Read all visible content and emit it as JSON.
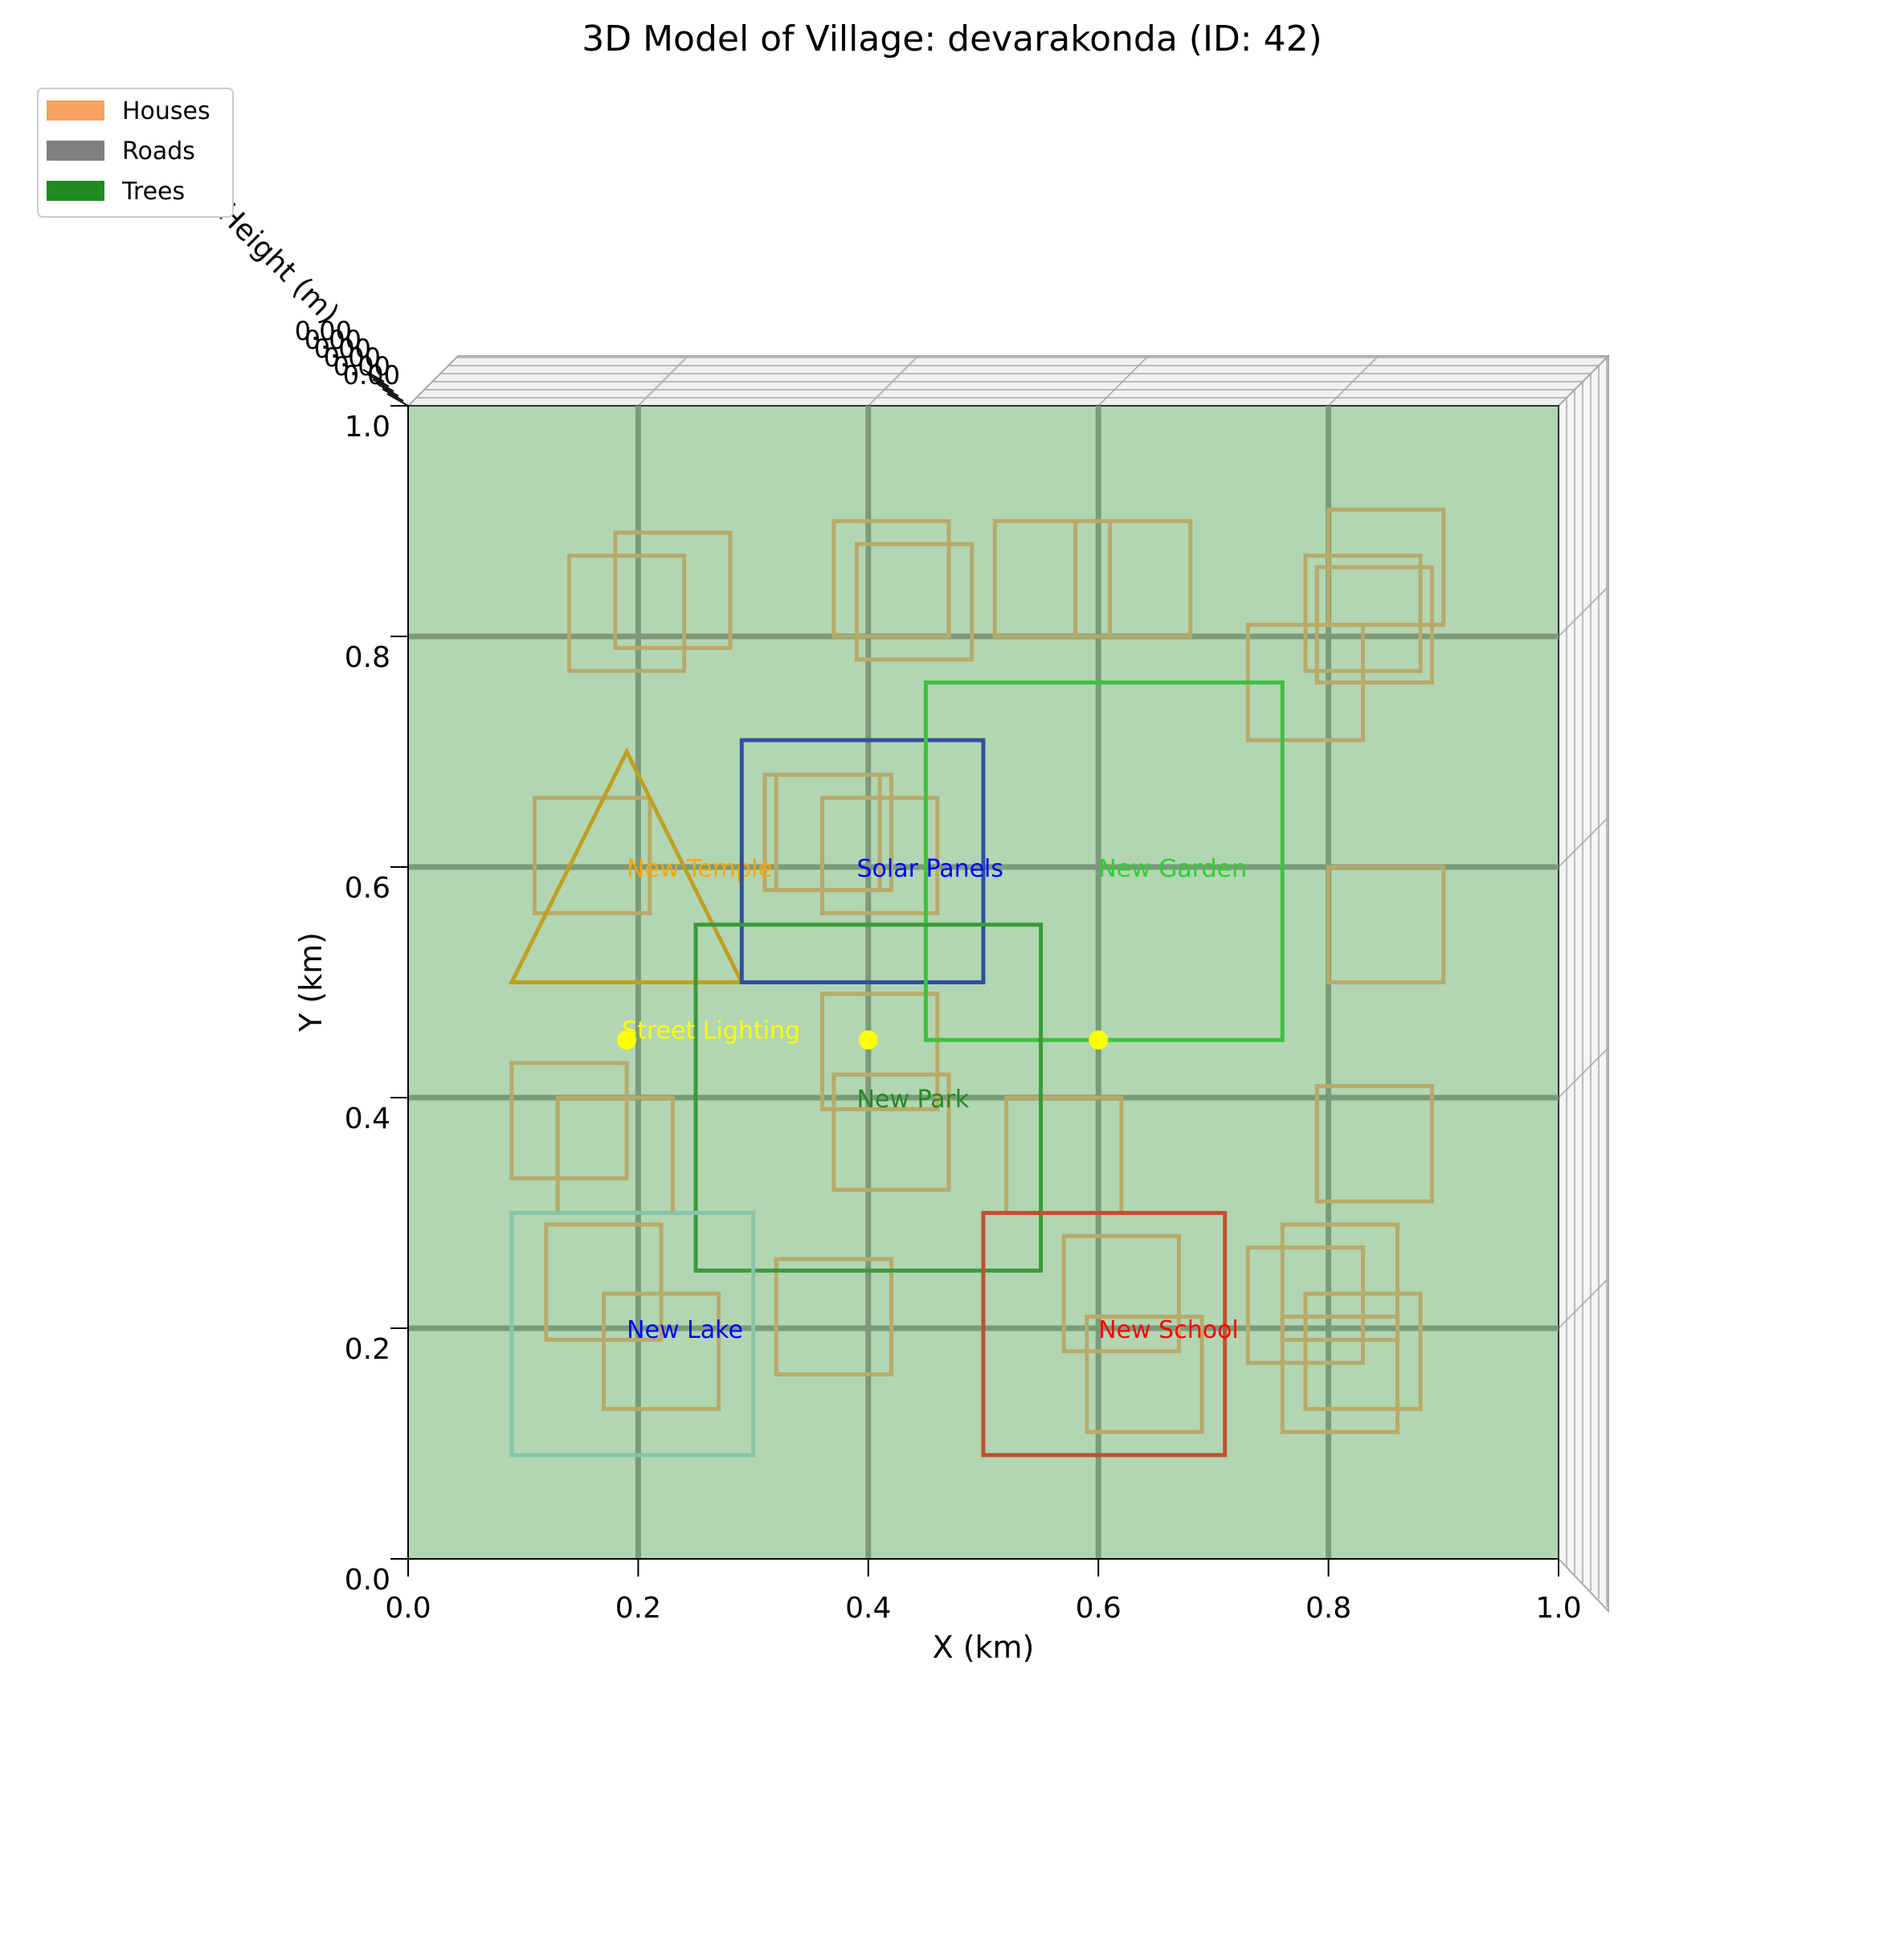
{
  "chart_data": {
    "type": "3d-map",
    "title": "3D Model of Village: devarakonda (ID: 42)",
    "xlabel": "X (km)",
    "ylabel": "Y (km)",
    "zlabel": "Height (m)",
    "xlim": [
      0,
      1
    ],
    "ylim": [
      0,
      1
    ],
    "x_ticks": [
      "0.0",
      "0.2",
      "0.4",
      "0.6",
      "0.8",
      "1.0"
    ],
    "y_ticks": [
      "0.0",
      "0.2",
      "0.4",
      "0.6",
      "0.8",
      "1.0"
    ],
    "z_tick_labels_shown": "0.00",
    "grid": true,
    "legend_position": "top-left",
    "legend": [
      {
        "label": "Houses",
        "color": "#f4a460"
      },
      {
        "label": "Roads",
        "color": "#808080"
      },
      {
        "label": "Trees",
        "color": "#228b22"
      }
    ],
    "ground_color": "#b2d6b2",
    "roads": {
      "color": "#7a9a7a",
      "x_positions": [
        0.2,
        0.4,
        0.6,
        0.8
      ],
      "y_positions": [
        0.2,
        0.4,
        0.6,
        0.8
      ]
    },
    "houses": {
      "color": "#b8aa6a",
      "footprints": [
        [
          0.14,
          0.77,
          0.1,
          0.1
        ],
        [
          0.18,
          0.79,
          0.1,
          0.1
        ],
        [
          0.37,
          0.8,
          0.1,
          0.1
        ],
        [
          0.39,
          0.78,
          0.1,
          0.1
        ],
        [
          0.51,
          0.8,
          0.1,
          0.1
        ],
        [
          0.58,
          0.8,
          0.1,
          0.1
        ],
        [
          0.78,
          0.77,
          0.1,
          0.1
        ],
        [
          0.79,
          0.76,
          0.1,
          0.1
        ],
        [
          0.73,
          0.71,
          0.1,
          0.1
        ],
        [
          0.8,
          0.81,
          0.1,
          0.1
        ],
        [
          0.11,
          0.56,
          0.1,
          0.1
        ],
        [
          0.31,
          0.58,
          0.1,
          0.1
        ],
        [
          0.32,
          0.58,
          0.1,
          0.1
        ],
        [
          0.36,
          0.56,
          0.1,
          0.1
        ],
        [
          0.8,
          0.5,
          0.1,
          0.1
        ],
        [
          0.36,
          0.39,
          0.1,
          0.1
        ],
        [
          0.09,
          0.33,
          0.1,
          0.1
        ],
        [
          0.13,
          0.3,
          0.1,
          0.1
        ],
        [
          0.37,
          0.32,
          0.1,
          0.1
        ],
        [
          0.52,
          0.3,
          0.1,
          0.1
        ],
        [
          0.79,
          0.31,
          0.1,
          0.1
        ],
        [
          0.12,
          0.19,
          0.1,
          0.1
        ],
        [
          0.17,
          0.13,
          0.1,
          0.1
        ],
        [
          0.32,
          0.16,
          0.1,
          0.1
        ],
        [
          0.57,
          0.18,
          0.1,
          0.1
        ],
        [
          0.59,
          0.11,
          0.1,
          0.1
        ],
        [
          0.73,
          0.17,
          0.1,
          0.1
        ],
        [
          0.76,
          0.19,
          0.1,
          0.1
        ],
        [
          0.76,
          0.11,
          0.1,
          0.1
        ],
        [
          0.78,
          0.13,
          0.1,
          0.1
        ]
      ]
    },
    "features": [
      {
        "label": "New Temple",
        "shape": "triangle",
        "points": [
          [
            0.09,
            0.5
          ],
          [
            0.29,
            0.5
          ],
          [
            0.19,
            0.7
          ]
        ],
        "color": "#c0a020",
        "label_color": "#ffa500",
        "label_pos": [
          0.19,
          0.6
        ]
      },
      {
        "label": "Solar Panels",
        "shape": "rect",
        "rect": [
          0.29,
          0.5,
          0.21,
          0.21
        ],
        "color": "#3050a0",
        "label_color": "#0000ff",
        "label_pos": [
          0.39,
          0.6
        ]
      },
      {
        "label": "New Garden",
        "shape": "rect",
        "rect": [
          0.45,
          0.45,
          0.31,
          0.31
        ],
        "color": "#40c040",
        "label_color": "#32cd32",
        "label_pos": [
          0.6,
          0.6
        ]
      },
      {
        "label": "New Park",
        "shape": "rect",
        "rect": [
          0.25,
          0.25,
          0.3,
          0.3
        ],
        "color": "#3a9a3a",
        "label_color": "#228b22",
        "label_pos": [
          0.39,
          0.4
        ]
      },
      {
        "label": "New Lake",
        "shape": "rect",
        "rect": [
          0.09,
          0.09,
          0.21,
          0.21
        ],
        "color": "#88c4a8",
        "label_color": "#0000ff",
        "label_pos": [
          0.19,
          0.2
        ]
      },
      {
        "label": "New School",
        "shape": "rect",
        "rect": [
          0.5,
          0.09,
          0.21,
          0.21
        ],
        "color": "#c05030",
        "label_color": "#ff0000",
        "label_pos": [
          0.6,
          0.2
        ]
      }
    ],
    "street_lighting": {
      "label": "Street Lighting",
      "color": "#ffff00",
      "points": [
        [
          0.19,
          0.45
        ],
        [
          0.4,
          0.45
        ],
        [
          0.6,
          0.45
        ]
      ]
    }
  }
}
